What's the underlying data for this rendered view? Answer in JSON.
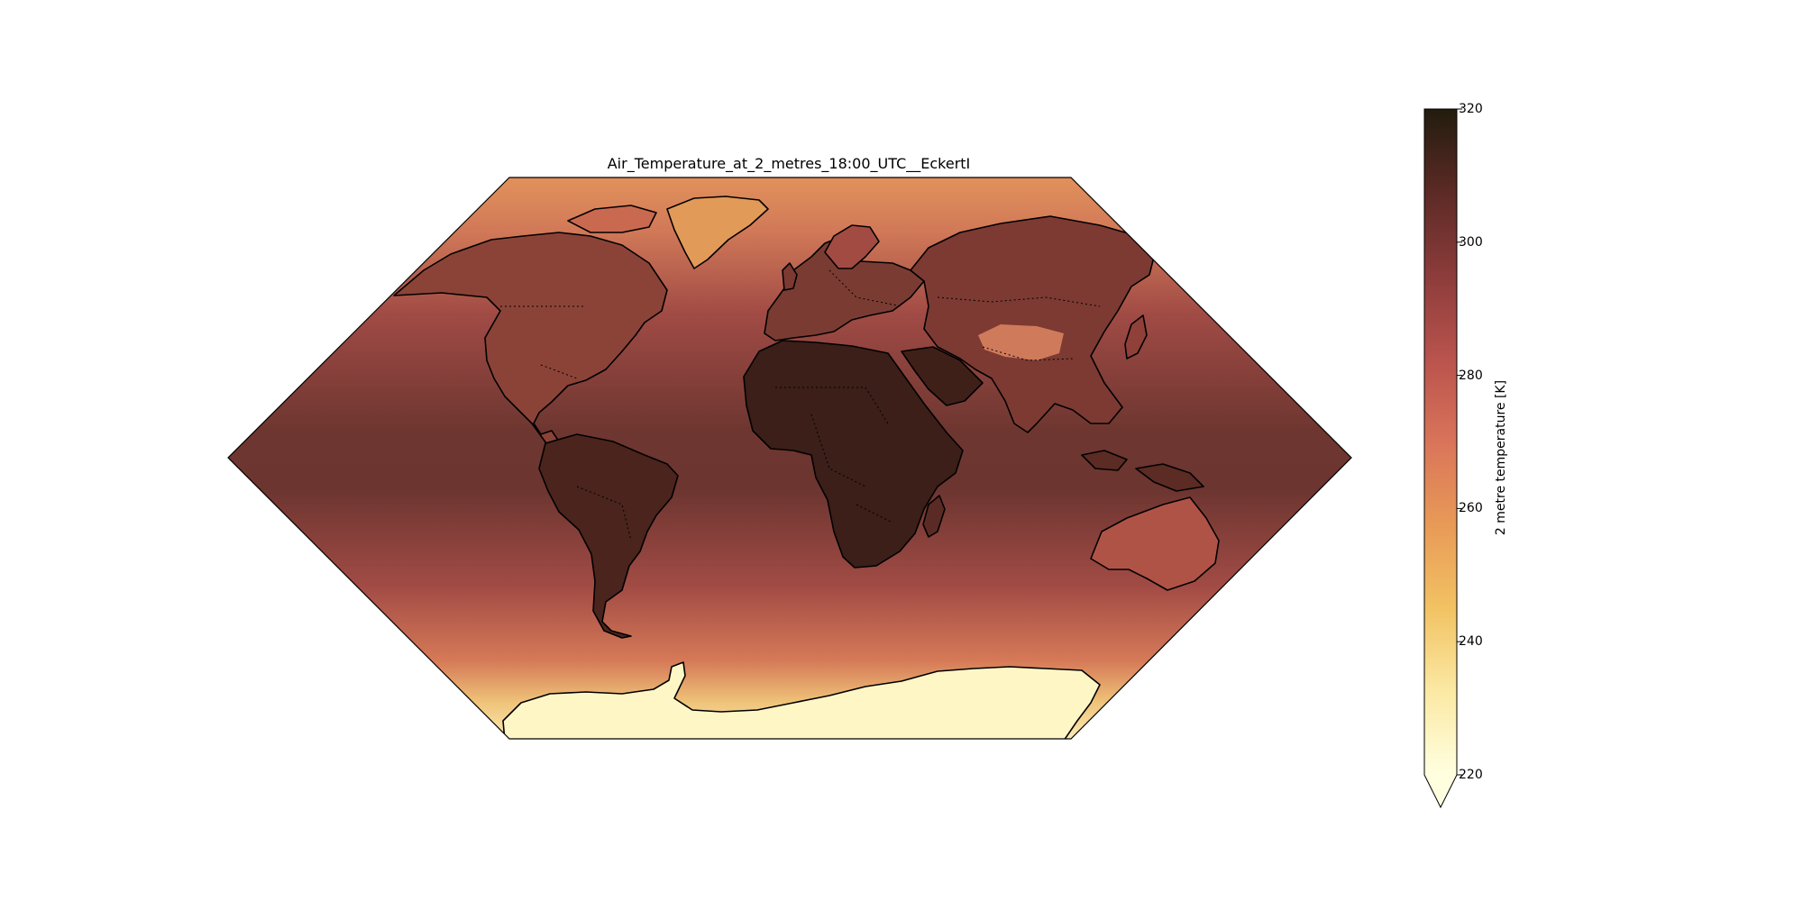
{
  "map": {
    "title": "Air_Temperature_at_2_metres_18:00_UTC__EckertI",
    "projection": "EckertI",
    "variable": "2 metre temperature",
    "time": "18:00 UTC"
  },
  "colorbar": {
    "label": "2 metre temperature [K]",
    "min": 220,
    "max": 320,
    "extend": "min",
    "ticks": [
      "220",
      "240",
      "260",
      "280",
      "300",
      "320"
    ],
    "colormap": [
      "#ffffe0",
      "#fbe9a4",
      "#f2c263",
      "#e89a57",
      "#d9745a",
      "#b9534d",
      "#8c3c3b",
      "#5c2a25",
      "#221c0e"
    ]
  },
  "regions": {
    "warm_land": [
      "North Africa",
      "Arabian Peninsula",
      "South America interior"
    ],
    "cold_land": [
      "Antarctica",
      "Greenland",
      "Tibetan Plateau"
    ]
  }
}
